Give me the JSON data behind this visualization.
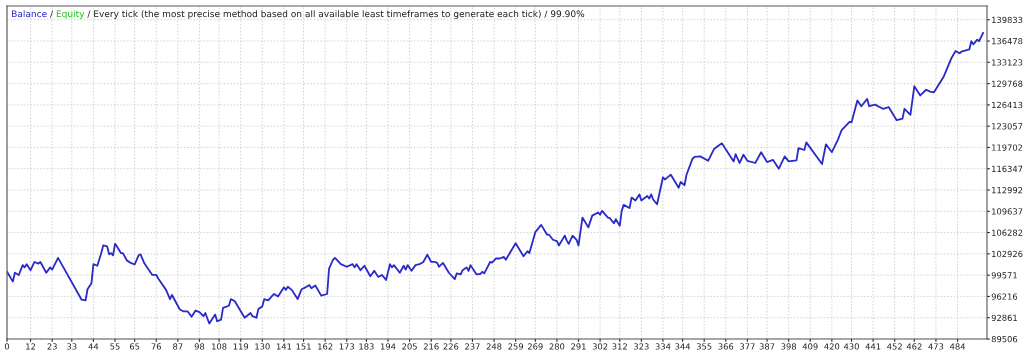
{
  "chart_data": {
    "type": "line",
    "title": "Every tick (the most precise method based on all available least timeframes to generate each tick) / 99.90%",
    "series": [
      {
        "name": "Balance",
        "color": "#2a2ac8",
        "x": [
          0,
          3,
          4,
          6,
          8,
          9,
          10,
          12,
          14,
          16,
          17,
          20,
          22,
          23,
          26,
          38,
          40,
          41,
          43,
          44,
          46,
          48,
          49,
          51,
          52,
          53,
          54,
          55,
          56,
          58,
          59,
          61,
          63,
          65,
          67,
          68,
          70,
          74,
          76,
          77,
          81,
          83,
          84,
          88,
          90,
          92,
          94,
          96,
          98,
          100,
          101,
          103,
          106,
          107,
          109,
          110,
          113,
          114,
          116,
          121,
          124,
          125,
          127,
          128,
          130,
          131,
          133,
          135,
          136,
          138,
          141,
          142,
          143,
          145,
          146,
          148,
          150,
          152,
          154,
          155,
          157,
          160,
          163,
          164,
          166,
          167,
          170,
          173,
          176,
          177,
          178,
          180,
          182,
          185,
          187,
          189,
          191,
          193,
          195,
          196,
          197,
          200,
          202,
          203,
          204,
          206,
          208,
          210,
          212,
          214,
          216,
          218,
          219,
          220,
          222,
          225,
          228,
          229,
          231,
          232,
          234,
          235,
          236,
          239,
          241,
          242,
          243,
          244,
          246,
          247,
          249,
          251,
          253,
          254,
          259,
          263,
          265,
          266,
          269,
          272,
          275,
          276,
          278,
          280,
          281,
          284,
          285,
          286,
          288,
          290,
          291,
          293,
          296,
          298,
          301,
          302,
          303,
          306,
          307,
          309,
          310,
          312,
          313,
          314,
          317,
          318,
          320,
          322,
          323,
          326,
          327,
          328,
          329,
          331,
          334,
          335,
          336,
          338,
          342,
          343,
          345,
          346,
          349,
          350,
          353,
          357,
          360,
          364,
          370,
          371,
          373,
          375,
          377,
          381,
          384,
          387,
          390,
          393,
          396,
          398,
          402,
          403,
          406,
          407,
          415,
          417,
          420,
          423,
          425,
          429,
          430,
          433,
          435,
          438,
          439,
          442,
          446,
          449,
          453,
          456,
          457,
          460,
          462,
          465,
          468,
          470,
          472,
          477,
          481,
          483,
          485,
          486,
          490,
          491,
          492,
          494,
          495,
          497
        ],
        "values": [
          100100,
          98550,
          99950,
          99600,
          101150,
          100800,
          101300,
          100350,
          101650,
          101400,
          101650,
          99950,
          100800,
          100450,
          102300,
          95700,
          95600,
          97350,
          98300,
          101300,
          101050,
          103050,
          104250,
          104100,
          102850,
          103050,
          102700,
          104500,
          104100,
          103050,
          103050,
          101900,
          101500,
          101250,
          102700,
          102850,
          101400,
          99600,
          99600,
          99050,
          97250,
          95800,
          96450,
          94150,
          93850,
          93850,
          93000,
          94000,
          93750,
          93100,
          93600,
          91950,
          93350,
          92300,
          92550,
          94400,
          94750,
          95800,
          95450,
          92850,
          93600,
          93100,
          92850,
          94250,
          94650,
          95800,
          95600,
          96300,
          96600,
          96200,
          97650,
          97250,
          97750,
          97250,
          96750,
          95800,
          97350,
          97650,
          98000,
          97500,
          97950,
          96350,
          96600,
          100600,
          102000,
          102300,
          101300,
          100900,
          101300,
          100800,
          101300,
          100350,
          101050,
          99400,
          100250,
          99300,
          99600,
          98800,
          101300,
          100800,
          101150,
          99950,
          101050,
          100450,
          101150,
          100250,
          101150,
          101300,
          101650,
          102800,
          101650,
          101650,
          101500,
          100900,
          101500,
          99950,
          98950,
          99850,
          99700,
          100350,
          100800,
          100250,
          101150,
          99700,
          99750,
          100100,
          99850,
          100450,
          101650,
          101550,
          102200,
          102200,
          102450,
          102000,
          104600,
          102550,
          103350,
          103050,
          106350,
          107500,
          105950,
          105950,
          105150,
          104950,
          104250,
          105800,
          105050,
          104500,
          105800,
          105150,
          104250,
          108650,
          107100,
          108950,
          109450,
          109100,
          109700,
          108650,
          108550,
          107750,
          108400,
          107350,
          109700,
          110650,
          110150,
          111800,
          111350,
          112300,
          111350,
          112050,
          111650,
          112300,
          111500,
          110750,
          115000,
          114650,
          114900,
          115400,
          113350,
          114250,
          113750,
          115400,
          117900,
          118200,
          118300,
          117600,
          119450,
          120350,
          117500,
          118650,
          117250,
          118550,
          117600,
          117250,
          118950,
          117400,
          117750,
          116350,
          118300,
          117500,
          117650,
          119600,
          119300,
          120500,
          117100,
          120200,
          118950,
          120850,
          122450,
          123750,
          123650,
          127100,
          126200,
          127350,
          126200,
          126450,
          125800,
          126050,
          124000,
          124250,
          125800,
          124850,
          129350,
          127900,
          128800,
          128500,
          128400,
          130900,
          133850,
          134900,
          134550,
          134800,
          135150,
          136450,
          135950,
          136700,
          136450,
          137750
        ]
      },
      {
        "name": "Equity",
        "color": "#22c022"
      }
    ],
    "xlim": [
      0,
      499
    ],
    "xticks": [
      0,
      12,
      23,
      33,
      44,
      55,
      65,
      76,
      87,
      98,
      108,
      119,
      130,
      141,
      151,
      162,
      173,
      183,
      194,
      205,
      216,
      226,
      237,
      248,
      259,
      269,
      280,
      291,
      302,
      312,
      323,
      334,
      344,
      355,
      366,
      377,
      387,
      398,
      409,
      420,
      430,
      441,
      452,
      462,
      473,
      484
    ],
    "ylim": [
      89506,
      142000
    ],
    "yticks": [
      89506,
      92861,
      96216,
      99571,
      102926,
      106282,
      109637,
      112992,
      116347,
      119702,
      123057,
      126413,
      129768,
      133123,
      136478,
      139833
    ],
    "annotations": [
      "/",
      "/"
    ],
    "grid": true,
    "legend": "top left",
    "marker": "none",
    "line_style": "solid"
  }
}
